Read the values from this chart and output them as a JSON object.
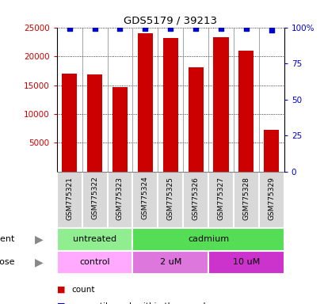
{
  "title": "GDS5179 / 39213",
  "samples": [
    "GSM775321",
    "GSM775322",
    "GSM775323",
    "GSM775324",
    "GSM775325",
    "GSM775326",
    "GSM775327",
    "GSM775328",
    "GSM775329"
  ],
  "counts": [
    17000,
    16800,
    14700,
    24000,
    23200,
    18100,
    23300,
    21000,
    7300
  ],
  "percentile_ranks": [
    99,
    99,
    99,
    99,
    99,
    99,
    99,
    99,
    98
  ],
  "bar_color": "#cc0000",
  "dot_color": "#0000cc",
  "ylim_left": [
    0,
    25000
  ],
  "ylim_right": [
    0,
    100
  ],
  "yticks_left": [
    5000,
    10000,
    15000,
    20000,
    25000
  ],
  "yticks_right": [
    0,
    25,
    50,
    75,
    100
  ],
  "agent_groups": [
    {
      "label": "untreated",
      "start": 0,
      "end": 3,
      "color": "#90ee90"
    },
    {
      "label": "cadmium",
      "start": 3,
      "end": 9,
      "color": "#55dd55"
    }
  ],
  "dose_groups": [
    {
      "label": "control",
      "start": 0,
      "end": 3,
      "color": "#ffaaff"
    },
    {
      "label": "2 uM",
      "start": 3,
      "end": 6,
      "color": "#dd77dd"
    },
    {
      "label": "10 uM",
      "start": 6,
      "end": 9,
      "color": "#cc33cc"
    }
  ],
  "legend_count_color": "#cc0000",
  "legend_dot_color": "#0000cc",
  "background_color": "#ffffff",
  "tick_label_color_left": "#cc0000",
  "tick_label_color_right": "#0000cc",
  "sample_box_color": "#d8d8d8",
  "plot_bg": "#ffffff"
}
